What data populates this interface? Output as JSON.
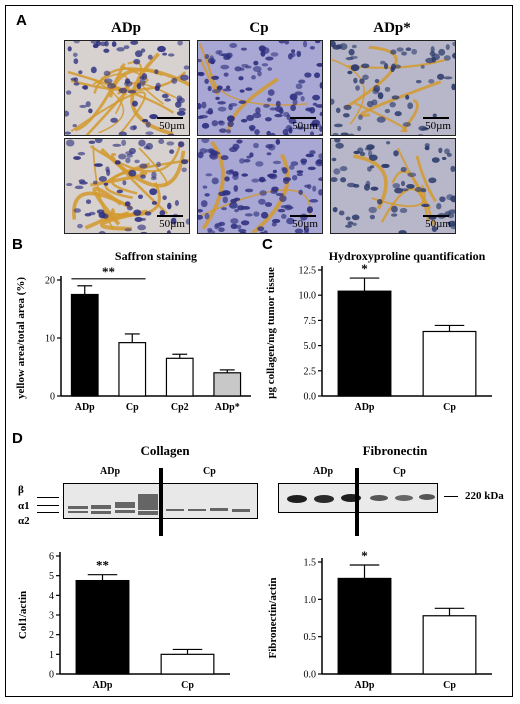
{
  "panels": {
    "A": "A",
    "B": "B",
    "C": "C",
    "D": "D"
  },
  "micrographs": {
    "columns": [
      "ADp",
      "Cp",
      "ADp*"
    ],
    "scale_bar": "50µm",
    "scale_bars": [
      "50µm",
      "50µm",
      "50µm",
      "50µm",
      "50µm",
      "50µm"
    ]
  },
  "colors": {
    "collagen": "#d49a2e",
    "nuclei": "#2e3080",
    "background": "#9a97c8"
  },
  "chart_data": [
    {
      "type": "bar",
      "title": "Saffron staining",
      "categories": [
        "ADp",
        "Cp",
        "Cp2",
        "ADp*"
      ],
      "values": [
        17.5,
        9.2,
        6.5,
        4.0
      ],
      "errors": [
        1.5,
        1.5,
        0.7,
        0.5
      ],
      "fills": [
        "#000000",
        "#ffffff",
        "#ffffff",
        "#c8c8c8"
      ],
      "ylabel": "yellow area/total area (%)",
      "ylim": [
        0,
        20
      ],
      "yticks": [
        0,
        10,
        20
      ],
      "annotations": [
        {
          "text": "**",
          "between": [
            "ADp",
            "Cp"
          ]
        }
      ]
    },
    {
      "type": "bar",
      "title": "Hydroxyproline quantification",
      "categories": [
        "ADp",
        "Cp"
      ],
      "values": [
        10.4,
        6.4
      ],
      "errors": [
        1.3,
        0.6
      ],
      "fills": [
        "#000000",
        "#ffffff"
      ],
      "ylabel": "µg collagen/mg tumor tissue",
      "ylim": [
        0,
        12.5
      ],
      "yticks": [
        "0.0",
        "2.5",
        "5.0",
        "7.5",
        "10.0",
        "12.5"
      ],
      "annotations": [
        {
          "text": "*",
          "over": "ADp"
        }
      ]
    },
    {
      "type": "bar",
      "categories": [
        "ADp",
        "Cp"
      ],
      "values": [
        4.75,
        1.0
      ],
      "errors": [
        0.3,
        0.25
      ],
      "fills": [
        "#000000",
        "#ffffff"
      ],
      "ylabel": "Col1/actin",
      "ylim": [
        0,
        6
      ],
      "yticks": [
        "0",
        "1",
        "2",
        "3",
        "4",
        "5",
        "6"
      ],
      "annotations": [
        {
          "text": "**",
          "over": "ADp"
        }
      ]
    },
    {
      "type": "bar",
      "categories": [
        "ADp",
        "Cp"
      ],
      "values": [
        1.28,
        0.78
      ],
      "errors": [
        0.18,
        0.1
      ],
      "fills": [
        "#000000",
        "#ffffff"
      ],
      "ylabel": "Fibronectin/actin",
      "ylim": [
        0,
        1.5
      ],
      "yticks": [
        "0.0",
        "0.5",
        "1.0",
        "1.5"
      ],
      "annotations": [
        {
          "text": "*",
          "over": "ADp"
        }
      ]
    }
  ],
  "blots": {
    "collagen": {
      "title": "Collagen",
      "groups": [
        "ADp",
        "Cp"
      ],
      "bands": [
        "β",
        "α1",
        "α2"
      ]
    },
    "fibronectin": {
      "title": "Fibronectin",
      "groups": [
        "ADp",
        "Cp"
      ],
      "marker": "220 kDa"
    }
  }
}
